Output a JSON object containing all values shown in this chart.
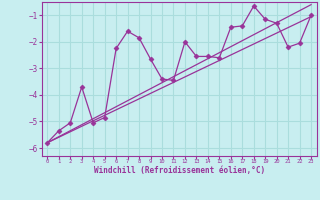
{
  "xlabel": "Windchill (Refroidissement éolien,°C)",
  "bg_color": "#c8eef0",
  "line_color": "#993399",
  "grid_color": "#aadddd",
  "axis_color": "#993399",
  "xlim": [
    -0.5,
    23.5
  ],
  "ylim": [
    -6.3,
    -0.5
  ],
  "xticks": [
    0,
    1,
    2,
    3,
    4,
    5,
    6,
    7,
    8,
    9,
    10,
    11,
    12,
    13,
    14,
    15,
    16,
    17,
    18,
    19,
    20,
    21,
    22,
    23
  ],
  "yticks": [
    -6,
    -5,
    -4,
    -3,
    -2,
    -1
  ],
  "scatter_x": [
    0,
    1,
    2,
    3,
    4,
    5,
    6,
    7,
    8,
    9,
    10,
    11,
    12,
    13,
    14,
    15,
    16,
    17,
    18,
    19,
    20,
    21,
    22,
    23
  ],
  "scatter_y": [
    -5.8,
    -5.35,
    -5.05,
    -3.7,
    -5.05,
    -4.85,
    -2.25,
    -1.6,
    -1.85,
    -2.65,
    -3.4,
    -3.45,
    -2.0,
    -2.55,
    -2.55,
    -2.6,
    -1.45,
    -1.4,
    -0.65,
    -1.15,
    -1.3,
    -2.2,
    -2.05,
    -1.0
  ],
  "line1_x": [
    0,
    23
  ],
  "line1_y": [
    -5.8,
    -1.05
  ],
  "line2_x": [
    0,
    23
  ],
  "line2_y": [
    -5.8,
    -0.6
  ]
}
